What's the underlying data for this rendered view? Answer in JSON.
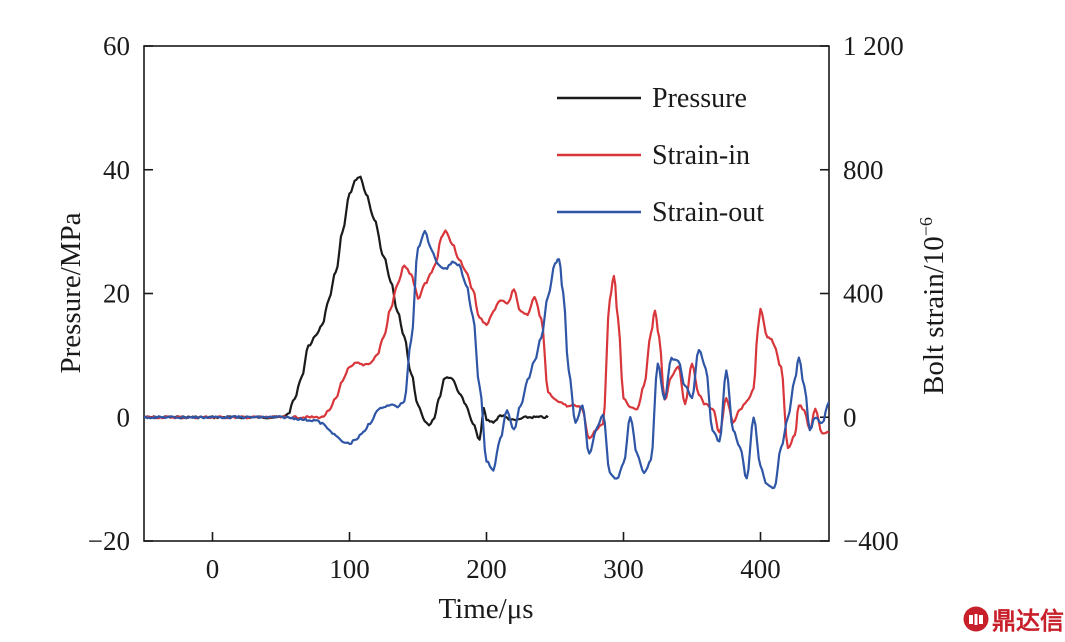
{
  "colors": {
    "pressure": "#1a1a1a",
    "strain_in": "#d8363a",
    "strain_out": "#2f56a6",
    "axis": "#1a1a1a",
    "watermark": "#c8202a"
  },
  "watermark": {
    "text": "鼎达信",
    "icon": "logo-seal-icon"
  },
  "chart_data": {
    "type": "line",
    "title": "",
    "xlabel": "Time/μs",
    "ylabel": "Pressure/MPa",
    "y2label": "Bolt strain/10",
    "y2label_exponent": "−6",
    "xlim": [
      -50,
      450
    ],
    "ylim": [
      -20,
      60
    ],
    "y2lim": [
      -400,
      1200
    ],
    "xticks": [
      0,
      100,
      200,
      300,
      400
    ],
    "xtick_labels": [
      "0",
      "100",
      "200",
      "300",
      "400"
    ],
    "yticks": [
      -20,
      0,
      20,
      40,
      60
    ],
    "ytick_labels": [
      "−20",
      "0",
      "20",
      "40",
      "60"
    ],
    "y2ticks": [
      -400,
      0,
      400,
      800,
      1200
    ],
    "y2tick_labels": [
      "−400",
      "0",
      "400",
      "800",
      "1 200"
    ],
    "grid": false,
    "legend_position": "top-right",
    "series": [
      {
        "name": "Pressure",
        "axis": "left",
        "color": "#1a1a1a",
        "points": [
          [
            -50,
            0
          ],
          [
            0,
            0
          ],
          [
            50,
            0
          ],
          [
            55,
            0.5
          ],
          [
            60,
            3
          ],
          [
            65,
            6.5
          ],
          [
            70,
            11.5
          ],
          [
            75,
            13
          ],
          [
            80,
            15
          ],
          [
            85,
            19
          ],
          [
            90,
            23.5
          ],
          [
            95,
            30
          ],
          [
            100,
            36
          ],
          [
            105,
            38.5
          ],
          [
            108,
            38.7
          ],
          [
            112,
            36
          ],
          [
            118,
            32
          ],
          [
            125,
            26
          ],
          [
            130,
            22
          ],
          [
            135,
            17
          ],
          [
            140,
            13
          ],
          [
            145,
            7
          ],
          [
            150,
            2
          ],
          [
            155,
            -0.5
          ],
          [
            158,
            -1.3
          ],
          [
            162,
            0
          ],
          [
            165,
            3
          ],
          [
            170,
            6.5
          ],
          [
            175,
            6.3
          ],
          [
            180,
            4
          ],
          [
            185,
            2
          ],
          [
            190,
            -1
          ],
          [
            195,
            -3.7
          ],
          [
            198,
            1.5
          ],
          [
            200,
            -0.5
          ],
          [
            205,
            -0.8
          ],
          [
            210,
            0.3
          ],
          [
            220,
            -0.5
          ],
          [
            230,
            0
          ],
          [
            245,
            0
          ]
        ]
      },
      {
        "name": "Strain-in",
        "axis": "right",
        "color": "#d8363a",
        "points": [
          [
            -50,
            0
          ],
          [
            0,
            0
          ],
          [
            50,
            0
          ],
          [
            70,
            0
          ],
          [
            80,
            0
          ],
          [
            85,
            20
          ],
          [
            90,
            60
          ],
          [
            95,
            120
          ],
          [
            100,
            160
          ],
          [
            105,
            175
          ],
          [
            110,
            170
          ],
          [
            115,
            175
          ],
          [
            120,
            200
          ],
          [
            125,
            260
          ],
          [
            130,
            350
          ],
          [
            135,
            430
          ],
          [
            140,
            490
          ],
          [
            145,
            460
          ],
          [
            148,
            420
          ],
          [
            150,
            380
          ],
          [
            155,
            430
          ],
          [
            160,
            470
          ],
          [
            163,
            500
          ],
          [
            167,
            580
          ],
          [
            170,
            605
          ],
          [
            175,
            560
          ],
          [
            180,
            510
          ],
          [
            185,
            470
          ],
          [
            190,
            410
          ],
          [
            195,
            320
          ],
          [
            200,
            300
          ],
          [
            205,
            340
          ],
          [
            210,
            380
          ],
          [
            215,
            365
          ],
          [
            220,
            410
          ],
          [
            225,
            340
          ],
          [
            230,
            330
          ],
          [
            235,
            390
          ],
          [
            240,
            320
          ],
          [
            245,
            80
          ],
          [
            250,
            60
          ],
          [
            255,
            45
          ],
          [
            260,
            35
          ],
          [
            265,
            40
          ],
          [
            270,
            25
          ],
          [
            275,
            -70
          ],
          [
            280,
            -40
          ],
          [
            285,
            -20
          ],
          [
            290,
            380
          ],
          [
            293,
            460
          ],
          [
            296,
            320
          ],
          [
            300,
            60
          ],
          [
            305,
            30
          ],
          [
            310,
            25
          ],
          [
            315,
            100
          ],
          [
            320,
            270
          ],
          [
            323,
            345
          ],
          [
            326,
            260
          ],
          [
            330,
            55
          ],
          [
            335,
            130
          ],
          [
            340,
            165
          ],
          [
            345,
            45
          ],
          [
            350,
            175
          ],
          [
            355,
            75
          ],
          [
            360,
            40
          ],
          [
            365,
            30
          ],
          [
            370,
            -50
          ],
          [
            375,
            60
          ],
          [
            380,
            -15
          ],
          [
            385,
            25
          ],
          [
            390,
            50
          ],
          [
            395,
            90
          ],
          [
            398,
            280
          ],
          [
            400,
            350
          ],
          [
            405,
            260
          ],
          [
            408,
            250
          ],
          [
            410,
            230
          ],
          [
            415,
            160
          ],
          [
            420,
            -100
          ],
          [
            425,
            -60
          ],
          [
            428,
            40
          ],
          [
            432,
            20
          ],
          [
            436,
            -40
          ],
          [
            440,
            25
          ],
          [
            445,
            -50
          ],
          [
            450,
            -50
          ]
        ]
      },
      {
        "name": "Strain-out",
        "axis": "right",
        "color": "#2f56a6",
        "points": [
          [
            -50,
            0
          ],
          [
            0,
            0
          ],
          [
            50,
            0
          ],
          [
            75,
            -10
          ],
          [
            80,
            -20
          ],
          [
            85,
            -40
          ],
          [
            90,
            -60
          ],
          [
            95,
            -80
          ],
          [
            100,
            -85
          ],
          [
            105,
            -70
          ],
          [
            110,
            -50
          ],
          [
            115,
            -20
          ],
          [
            120,
            20
          ],
          [
            125,
            35
          ],
          [
            130,
            40
          ],
          [
            135,
            35
          ],
          [
            140,
            50
          ],
          [
            145,
            250
          ],
          [
            150,
            550
          ],
          [
            155,
            600
          ],
          [
            160,
            540
          ],
          [
            165,
            490
          ],
          [
            170,
            480
          ],
          [
            175,
            500
          ],
          [
            180,
            490
          ],
          [
            185,
            430
          ],
          [
            190,
            330
          ],
          [
            195,
            100
          ],
          [
            200,
            -140
          ],
          [
            205,
            -170
          ],
          [
            210,
            -70
          ],
          [
            215,
            20
          ],
          [
            220,
            -40
          ],
          [
            225,
            40
          ],
          [
            230,
            120
          ],
          [
            235,
            180
          ],
          [
            240,
            260
          ],
          [
            245,
            390
          ],
          [
            250,
            500
          ],
          [
            253,
            510
          ],
          [
            256,
            400
          ],
          [
            260,
            150
          ],
          [
            265,
            -20
          ],
          [
            270,
            40
          ],
          [
            275,
            -120
          ],
          [
            280,
            -40
          ],
          [
            285,
            10
          ],
          [
            290,
            -180
          ],
          [
            295,
            -200
          ],
          [
            300,
            -150
          ],
          [
            305,
            0
          ],
          [
            310,
            -120
          ],
          [
            315,
            -180
          ],
          [
            320,
            -140
          ],
          [
            325,
            170
          ],
          [
            330,
            60
          ],
          [
            335,
            190
          ],
          [
            340,
            180
          ],
          [
            345,
            100
          ],
          [
            350,
            60
          ],
          [
            355,
            220
          ],
          [
            360,
            160
          ],
          [
            365,
            -40
          ],
          [
            370,
            -80
          ],
          [
            375,
            150
          ],
          [
            380,
            -40
          ],
          [
            385,
            -100
          ],
          [
            390,
            -200
          ],
          [
            395,
            0
          ],
          [
            400,
            -160
          ],
          [
            405,
            -220
          ],
          [
            410,
            -230
          ],
          [
            415,
            -100
          ],
          [
            420,
            0
          ],
          [
            425,
            120
          ],
          [
            428,
            195
          ],
          [
            432,
            100
          ],
          [
            436,
            -40
          ],
          [
            440,
            0
          ],
          [
            445,
            -20
          ],
          [
            450,
            50
          ]
        ]
      }
    ]
  }
}
